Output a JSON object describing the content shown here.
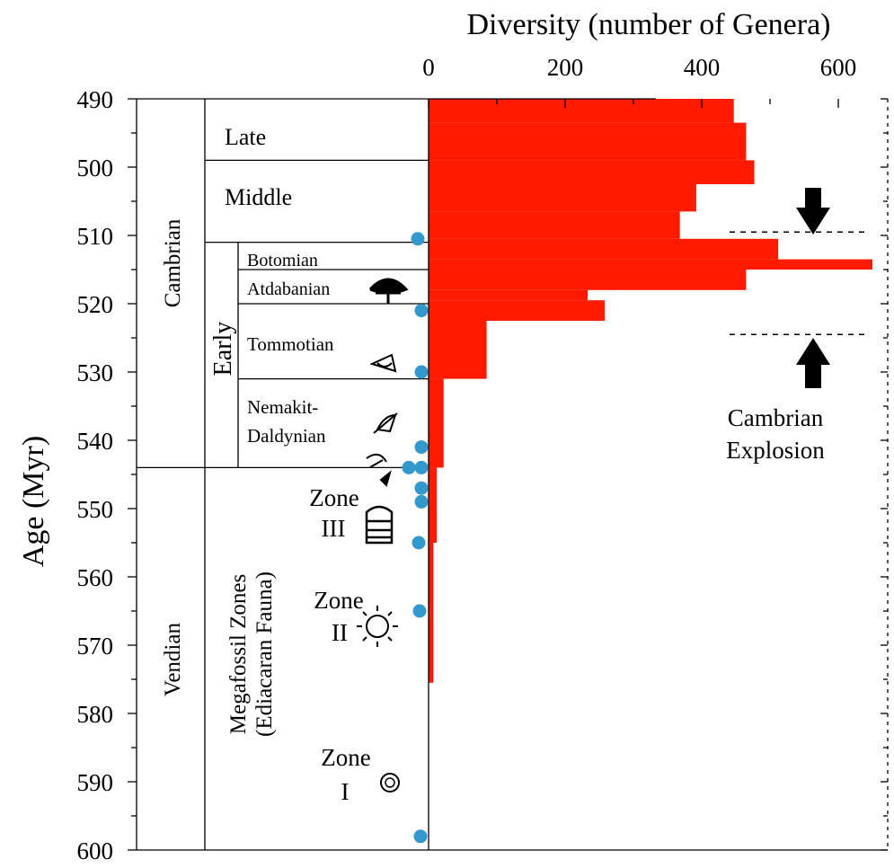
{
  "chart_data": {
    "type": "bar",
    "orientation": "horizontal-step",
    "title": "Diversity (number of Genera)",
    "ylabel": "Age (Myr)",
    "xlim": [
      0,
      650
    ],
    "ylim": [
      490,
      600
    ],
    "y_inverted": true,
    "x_ticks": [
      "0",
      "200",
      "400",
      "600"
    ],
    "y_ticks": [
      "490",
      "500",
      "510",
      "520",
      "530",
      "540",
      "550",
      "560",
      "570",
      "580",
      "590",
      "600"
    ],
    "bar_color": "#ff1a00",
    "series": [
      {
        "values": [
          {
            "age_top": 490,
            "age_bottom": 493.5,
            "diversity": 447
          },
          {
            "age_top": 493.5,
            "age_bottom": 499,
            "diversity": 465
          },
          {
            "age_top": 499,
            "age_bottom": 502.5,
            "diversity": 477
          },
          {
            "age_top": 502.5,
            "age_bottom": 506.5,
            "diversity": 392
          },
          {
            "age_top": 506.5,
            "age_bottom": 510.5,
            "diversity": 368
          },
          {
            "age_top": 510.5,
            "age_bottom": 513.5,
            "diversity": 512
          },
          {
            "age_top": 513.5,
            "age_bottom": 515,
            "diversity": 650
          },
          {
            "age_top": 515,
            "age_bottom": 518,
            "diversity": 465
          },
          {
            "age_top": 518,
            "age_bottom": 519.5,
            "diversity": 233
          },
          {
            "age_top": 519.5,
            "age_bottom": 522.5,
            "diversity": 258
          },
          {
            "age_top": 522.5,
            "age_bottom": 531,
            "diversity": 85
          },
          {
            "age_top": 531,
            "age_bottom": 544,
            "diversity": 22
          },
          {
            "age_top": 544,
            "age_bottom": 555,
            "diversity": 12
          },
          {
            "age_top": 555,
            "age_bottom": 575.5,
            "diversity": 7
          }
        ]
      }
    ],
    "markers": {
      "color": "#3399cc",
      "ages": [
        510.5,
        521,
        530,
        541,
        544,
        544,
        547,
        549,
        555,
        565,
        598
      ]
    },
    "stratigraphy": {
      "periods": [
        {
          "name": "Cambrian",
          "from": 490,
          "to": 544
        },
        {
          "name": "Vendian",
          "from": 544,
          "to": 600
        }
      ],
      "epochs": [
        {
          "name": "Late",
          "from": 490,
          "to": 499
        },
        {
          "name": "Middle",
          "from": 499,
          "to": 511
        },
        {
          "name": "Early",
          "from": 511,
          "to": 544
        }
      ],
      "stages": [
        {
          "name": "Botomian",
          "from": 511,
          "to": 515
        },
        {
          "name": "Atdabanian",
          "from": 515,
          "to": 520
        },
        {
          "name": "Tommotian",
          "from": 520,
          "to": 531
        },
        {
          "name": "Nemakit-",
          "name2": "Daldynian",
          "from": 531,
          "to": 544
        }
      ],
      "megafossil_label": "Megafossil Zones",
      "megafossil_label2": "(Ediacaran Fauna)",
      "zones": [
        {
          "line1": "Zone",
          "line2": "III"
        },
        {
          "line1": "Zone",
          "line2": "II"
        },
        {
          "line1": "Zone",
          "line2": "I"
        }
      ]
    },
    "annotation": {
      "line1": "Cambrian",
      "line2": "Explosion",
      "span": [
        509.5,
        524.5
      ]
    }
  }
}
